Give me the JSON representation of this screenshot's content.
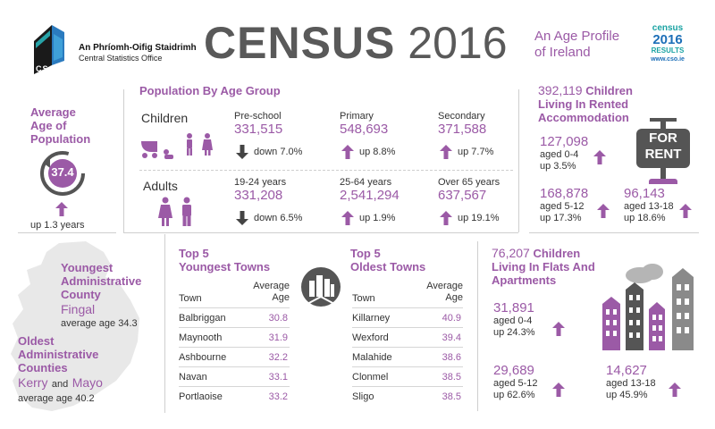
{
  "header": {
    "org_irish": "An Phríomh-Oifig Staidrimh",
    "org_english": "Central Statistics Office",
    "logo_text": "CSO",
    "title_bold": "CENSUS",
    "title_year": "2016",
    "subtitle_line1": "An Age Profile",
    "subtitle_line2": "of Ireland",
    "badge_top": "census",
    "badge_year": "2016",
    "badge_results": "RESULTS",
    "badge_url": "www.cso.ie"
  },
  "avg_age": {
    "title_line1": "Average",
    "title_line2": "Age of",
    "title_line3": "Population",
    "value": "37.4",
    "change": "up 1.3 years"
  },
  "pop_age_group": {
    "title": "Population By Age Group",
    "children_label": "Children",
    "adults_label": "Adults",
    "children": [
      {
        "label": "Pre-school",
        "value": "331,515",
        "change": "down 7.0%",
        "dir": "down"
      },
      {
        "label": "Primary",
        "value": "548,693",
        "change": "up 8.8%",
        "dir": "up"
      },
      {
        "label": "Secondary",
        "value": "371,588",
        "change": "up 7.7%",
        "dir": "up"
      }
    ],
    "adults": [
      {
        "label": "19-24 years",
        "value": "331,208",
        "change": "down 6.5%",
        "dir": "down"
      },
      {
        "label": "25-64 years",
        "value": "2,541,294",
        "change": "up 1.9%",
        "dir": "up"
      },
      {
        "label": "Over 65 years",
        "value": "637,567",
        "change": "up 19.1%",
        "dir": "up"
      }
    ]
  },
  "rented": {
    "total": "392,119",
    "title_word": "Children",
    "title_line2": "Living In Rented",
    "title_line3": "Accommodation",
    "sign_line1": "FOR",
    "sign_line2": "RENT",
    "groups": [
      {
        "value": "127,098",
        "age": "aged 0-4",
        "change": "up 3.5%"
      },
      {
        "value": "168,878",
        "age": "aged 5-12",
        "change": "up 17.3%"
      },
      {
        "value": "96,143",
        "age": "aged 13-18",
        "change": "up 18.6%"
      }
    ]
  },
  "counties": {
    "youngest_line1": "Youngest",
    "youngest_line2": "Administrative",
    "youngest_line3": "County",
    "youngest_name": "Fingal",
    "youngest_age": "average age 34.3",
    "oldest_line1": "Oldest",
    "oldest_line2": "Administrative",
    "oldest_line3": "Counties",
    "oldest_name1": "Kerry",
    "oldest_and": "and",
    "oldest_name2": "Mayo",
    "oldest_age": "average age 40.2"
  },
  "youngest_towns": {
    "title_line1": "Top 5",
    "title_line2": "Youngest Towns",
    "col_town": "Town",
    "col_age_line1": "Average",
    "col_age_line2": "Age",
    "rows": [
      {
        "town": "Balbriggan",
        "age": "30.8"
      },
      {
        "town": "Maynooth",
        "age": "31.9"
      },
      {
        "town": "Ashbourne",
        "age": "32.2"
      },
      {
        "town": "Navan",
        "age": "33.1"
      },
      {
        "town": "Portlaoise",
        "age": "33.2"
      }
    ]
  },
  "oldest_towns": {
    "title_line1": "Top 5",
    "title_line2": "Oldest Towns",
    "col_town": "Town",
    "col_age_line1": "Average",
    "col_age_line2": "Age",
    "rows": [
      {
        "town": "Killarney",
        "age": "40.9"
      },
      {
        "town": "Wexford",
        "age": "39.4"
      },
      {
        "town": "Malahide",
        "age": "38.6"
      },
      {
        "town": "Clonmel",
        "age": "38.5"
      },
      {
        "town": "Sligo",
        "age": "38.5"
      }
    ]
  },
  "flats": {
    "total": "76,207",
    "title_word": "Children",
    "title_line2": "Living In Flats And",
    "title_line3": "Apartments",
    "groups": [
      {
        "value": "31,891",
        "age": "aged 0-4",
        "change": "up 24.3%"
      },
      {
        "value": "29,689",
        "age": "aged 5-12",
        "change": "up 62.6%"
      },
      {
        "value": "14,627",
        "age": "aged 13-18",
        "change": "up 45.9%"
      }
    ]
  },
  "colors": {
    "purple": "#9b5aa6",
    "dark_grey": "#555555",
    "light_grey": "#cfcfcf"
  }
}
